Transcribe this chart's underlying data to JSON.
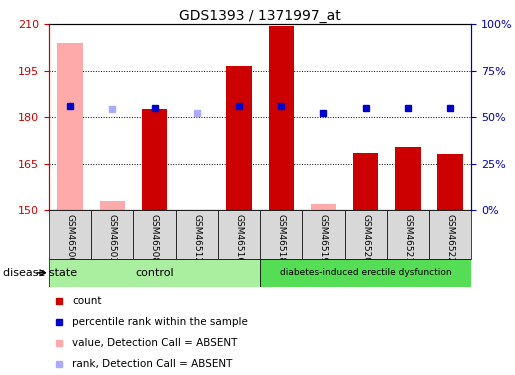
{
  "title": "GDS1393 / 1371997_at",
  "samples": [
    "GSM46500",
    "GSM46503",
    "GSM46508",
    "GSM46512",
    "GSM46516",
    "GSM46518",
    "GSM46519",
    "GSM46520",
    "GSM46521",
    "GSM46522"
  ],
  "count_values": [
    null,
    null,
    182.5,
    null,
    196.5,
    209.5,
    null,
    168.5,
    170.5,
    168.0
  ],
  "count_absent_values": [
    204.0,
    153.0,
    null,
    null,
    null,
    null,
    152.0,
    null,
    null,
    null
  ],
  "rank_values": [
    183.5,
    null,
    183.0,
    null,
    183.5,
    183.5,
    181.5,
    183.0,
    183.0,
    183.0
  ],
  "rank_absent_values": [
    null,
    182.5,
    null,
    181.5,
    null,
    null,
    null,
    null,
    null,
    null
  ],
  "ylim_left": [
    150,
    210
  ],
  "ylim_right": [
    0,
    100
  ],
  "yticks_left": [
    150,
    165,
    180,
    195,
    210
  ],
  "yticks_right": [
    0,
    25,
    50,
    75,
    100
  ],
  "ytick_labels_right": [
    "0%",
    "25%",
    "50%",
    "75%",
    "100%"
  ],
  "control_label": "control",
  "diabetes_label": "diabetes-induced erectile dysfunction",
  "disease_state_label": "disease state",
  "bar_width": 0.6,
  "legend_items": [
    {
      "label": "count",
      "color": "#cc0000"
    },
    {
      "label": "percentile rank within the sample",
      "color": "#0000cc"
    },
    {
      "label": "value, Detection Call = ABSENT",
      "color": "#ffaaaa"
    },
    {
      "label": "rank, Detection Call = ABSENT",
      "color": "#aaaaff"
    }
  ],
  "colors": {
    "count_bar": "#cc0000",
    "count_absent_bar": "#ffaaaa",
    "rank_marker": "#0000cc",
    "rank_absent_marker": "#aaaaff",
    "control_bg": "#aaeea0",
    "diabetes_bg": "#55dd55",
    "sample_box_bg": "#d8d8d8",
    "axis_left_color": "#cc0000",
    "axis_right_color": "#0000bb"
  }
}
